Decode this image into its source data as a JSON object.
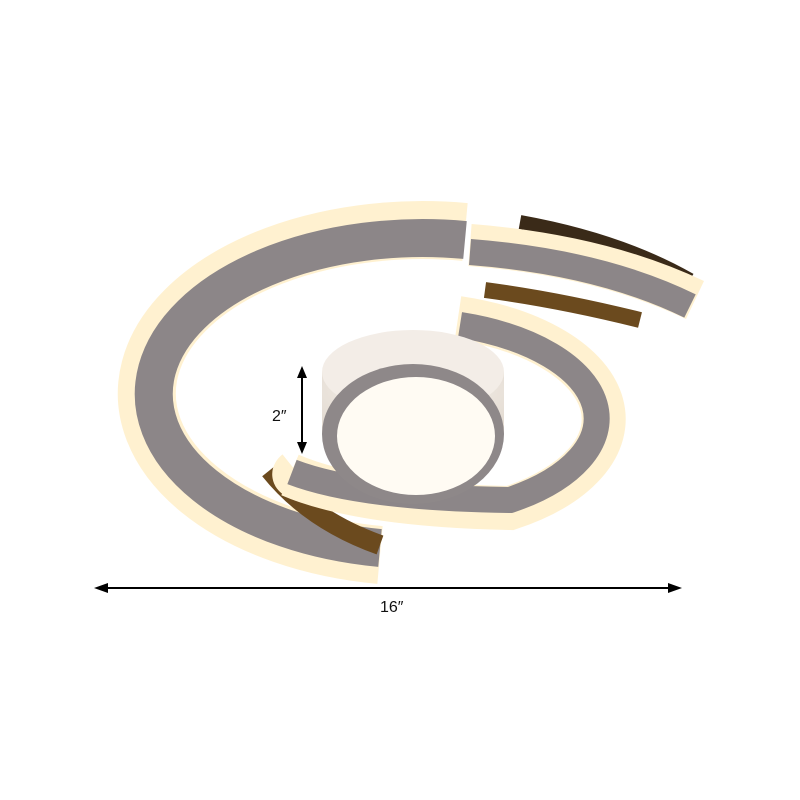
{
  "product": {
    "height_label": "2″",
    "width_label": "16″"
  },
  "colors": {
    "ring_gray": "#8c8688",
    "glow": "#fff3d6",
    "warm_shadow": "#6b4a1e",
    "cylinder_side": "#efe9e3",
    "diffuser": "#fffbf3"
  }
}
